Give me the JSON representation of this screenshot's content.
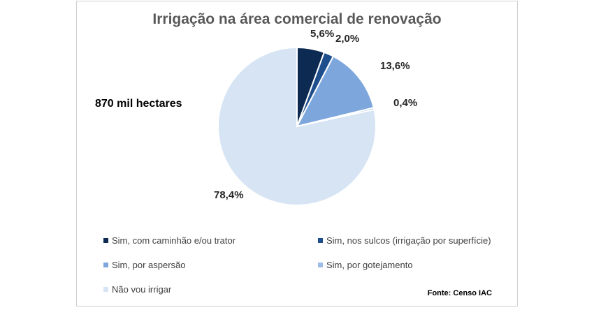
{
  "chart_data": {
    "type": "pie",
    "title": "Irrigação na área comercial de renovação",
    "annotation": "870 mil hectares",
    "source": "Fonte: Censo IAC",
    "categories": [
      "Sim, com caminhão e/ou trator",
      "Sim, nos sulcos (irrigação por superfície)",
      "Sim, por aspersão",
      "Sim, por gotejamento",
      "Não vou irrigar"
    ],
    "values": [
      5.6,
      2.0,
      13.6,
      0.4,
      78.4
    ],
    "labels": [
      "5,6%",
      "2,0%",
      "13,6%",
      "0,4%",
      "78,4%"
    ],
    "colors": [
      "#0d2b52",
      "#1f4e8c",
      "#7da7dc",
      "#9dbde6",
      "#d6e4f4"
    ],
    "legend_position": "bottom"
  }
}
